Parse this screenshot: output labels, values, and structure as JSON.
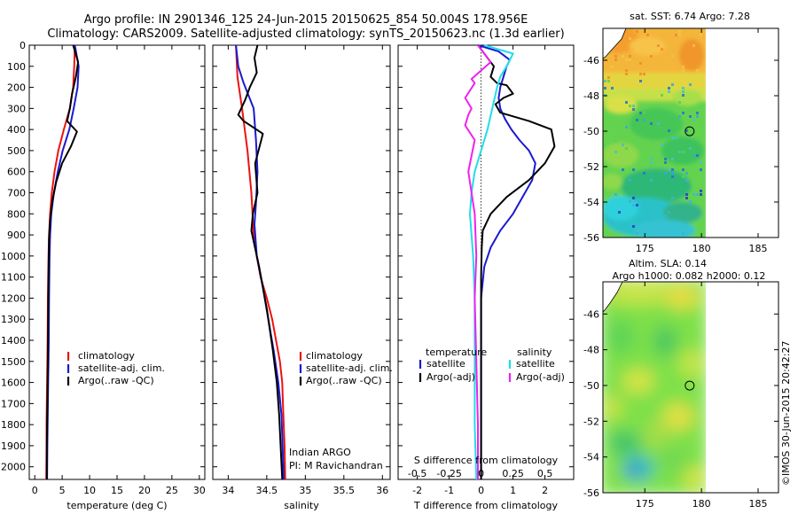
{
  "figure": {
    "title_line1": "Argo profile: IN 2901346_125 24-Jun-2015 20150625_854 50.004S 178.956E",
    "title_line2": "Climatology: CARS2009. Satellite-adjusted climatology: synTS_20150623.nc (1.3d earlier)",
    "copyright": "©IMOS 30-Jun-2015 20:42:27"
  },
  "colors": {
    "climatology": "#ee1111",
    "satellite": "#1a1ad0",
    "argo": "#000000",
    "satellite_diff": "#22dde8",
    "argo_diff": "#ee22ee"
  },
  "chart_data": [
    {
      "type": "line",
      "name": "temperature-panel",
      "xlabel": "temperature (deg C)",
      "ylabel": "",
      "xlim": [
        -1,
        31
      ],
      "ylim": [
        2060,
        0
      ],
      "xticks": [
        "0",
        "5",
        "10",
        "15",
        "20",
        "25",
        "30"
      ],
      "yticks": [
        "0",
        "100",
        "200",
        "300",
        "400",
        "500",
        "600",
        "700",
        "800",
        "900",
        "1000",
        "1100",
        "1200",
        "1300",
        "1400",
        "1500",
        "1600",
        "1700",
        "1800",
        "1900",
        "2000"
      ],
      "legend": [
        "climatology",
        "satellite-adj. clim.",
        "Argo(..raw -QC)"
      ],
      "series": [
        {
          "name": "climatology",
          "x": [
            7.3,
            7.2,
            7.0,
            6.4,
            5.3,
            4.3,
            3.6,
            3.1,
            2.8,
            2.6,
            2.5,
            2.4,
            2.35,
            2.3,
            2.25,
            2.2,
            2.15,
            2.15,
            2.1
          ],
          "y": [
            0,
            100,
            200,
            300,
            400,
            500,
            600,
            700,
            800,
            900,
            1000,
            1200,
            1400,
            1500,
            1600,
            1700,
            1800,
            1900,
            2060
          ]
        },
        {
          "name": "satellite-adj. clim.",
          "x": [
            7.3,
            8.0,
            7.8,
            7.1,
            6.3,
            5.1,
            4.2,
            3.5,
            3.0,
            2.8,
            2.7,
            2.6,
            2.55,
            2.5,
            2.45,
            2.4,
            2.35,
            2.3,
            2.25
          ],
          "y": [
            0,
            100,
            200,
            300,
            400,
            500,
            600,
            700,
            800,
            900,
            1000,
            1200,
            1400,
            1500,
            1600,
            1700,
            1800,
            1900,
            2060
          ]
        },
        {
          "name": "Argo(..raw -QC)",
          "x": [
            7.0,
            7.9,
            7.5,
            6.8,
            6.4,
            5.9,
            7.7,
            6.6,
            5.0,
            3.9,
            3.2,
            2.8,
            2.6,
            2.5,
            2.45,
            2.4,
            2.35,
            2.3,
            2.25,
            2.2,
            2.2
          ],
          "y": [
            0,
            80,
            150,
            230,
            300,
            360,
            410,
            480,
            560,
            650,
            740,
            830,
            920,
            1100,
            1300,
            1500,
            1600,
            1700,
            1800,
            1900,
            2060
          ]
        }
      ]
    },
    {
      "type": "line",
      "name": "salinity-panel",
      "xlabel": "salinity",
      "xlim": [
        33.8,
        36.1
      ],
      "ylim": [
        2060,
        0
      ],
      "xticks": [
        "34",
        "34.5",
        "35",
        "35.5",
        "36"
      ],
      "legend": [
        "climatology",
        "satellite-adj. clim.",
        "Argo(..raw -QC)"
      ],
      "annotation": [
        "Indian ARGO",
        "PI: M Ravichandran"
      ],
      "series": [
        {
          "name": "climatology",
          "x": [
            34.1,
            34.12,
            34.18,
            34.25,
            34.3,
            34.33,
            34.37,
            34.42,
            34.5,
            34.57,
            34.62,
            34.67,
            34.7,
            34.71,
            34.72,
            34.73,
            34.74
          ],
          "y": [
            0,
            150,
            300,
            500,
            700,
            900,
            1000,
            1100,
            1200,
            1300,
            1400,
            1500,
            1600,
            1700,
            1800,
            1900,
            2060
          ]
        },
        {
          "name": "satellite-adj. clim.",
          "x": [
            34.1,
            34.13,
            34.2,
            34.33,
            34.36,
            34.38,
            34.36,
            34.34,
            34.37,
            34.45,
            34.52,
            34.59,
            34.65,
            34.69,
            34.7,
            34.71,
            34.72
          ],
          "y": [
            0,
            100,
            180,
            300,
            450,
            600,
            750,
            850,
            1000,
            1150,
            1300,
            1450,
            1600,
            1750,
            1850,
            1950,
            2060
          ]
        },
        {
          "name": "Argo(..raw -QC)",
          "x": [
            34.38,
            34.34,
            34.37,
            34.28,
            34.22,
            34.13,
            34.2,
            34.45,
            34.35,
            34.38,
            34.32,
            34.3,
            34.4,
            34.5,
            34.58,
            34.63,
            34.66,
            34.68,
            34.7
          ],
          "y": [
            0,
            60,
            130,
            200,
            260,
            330,
            360,
            420,
            560,
            700,
            800,
            880,
            1050,
            1250,
            1450,
            1600,
            1750,
            1900,
            2060
          ]
        }
      ]
    },
    {
      "type": "line",
      "name": "difference-panel",
      "xlabel": "T difference from climatology",
      "x2label": "S difference from climatology",
      "xlim": [
        -2.6,
        2.9
      ],
      "ylim": [
        2060,
        0
      ],
      "xticks": [
        "-2",
        "-1",
        "0",
        "1",
        "2"
      ],
      "x2ticks": [
        "-0.5",
        "-0.25",
        "0",
        "0.25",
        "0.5"
      ],
      "x2tick_values": [
        -2,
        -1,
        0,
        1,
        2
      ],
      "legend_headers": [
        "temperature",
        "salinity"
      ],
      "legend": [
        "satellite",
        "Argo(-adj)",
        "satellite",
        "Argo(-adj)"
      ],
      "series": [
        {
          "name": "satellite",
          "x": [
            -0.1,
            0.55,
            0.9,
            0.8,
            0.7,
            0.6,
            0.55,
            0.6,
            0.75,
            0.95,
            1.2,
            1.5,
            1.7,
            1.6,
            1.3,
            1.0,
            0.6,
            0.3,
            0.1,
            0.0,
            0.0,
            0.0,
            0.0
          ],
          "y": [
            0,
            30,
            70,
            100,
            150,
            200,
            250,
            300,
            350,
            400,
            450,
            500,
            560,
            640,
            720,
            800,
            880,
            960,
            1050,
            1200,
            1500,
            1800,
            2060
          ],
          "kind": "T"
        },
        {
          "name": "Argo(-adj)",
          "x": [
            -0.1,
            0.2,
            0.4,
            0.3,
            0.5,
            0.8,
            1.0,
            0.7,
            0.45,
            0.6,
            1.5,
            2.2,
            2.3,
            2.0,
            1.5,
            0.8,
            0.3,
            0.05,
            0.02,
            0.0,
            0.0,
            0.0
          ],
          "y": [
            0,
            60,
            100,
            150,
            180,
            190,
            230,
            250,
            280,
            320,
            360,
            400,
            480,
            560,
            640,
            720,
            800,
            880,
            960,
            1100,
            1500,
            2060
          ],
          "kind": "T"
        },
        {
          "name": "satellite",
          "x": [
            0.1,
            1.0,
            0.8,
            0.6,
            0.5,
            0.35,
            0.2,
            0.0,
            -0.2,
            -0.3,
            -0.35,
            -0.3,
            -0.25,
            -0.2,
            -0.2,
            -0.2,
            -0.15
          ],
          "y": [
            0,
            40,
            100,
            150,
            200,
            300,
            400,
            500,
            600,
            700,
            800,
            900,
            1000,
            1200,
            1500,
            1800,
            2060
          ],
          "kind": "S"
        },
        {
          "name": "Argo(-adj)",
          "x": [
            -0.1,
            0.3,
            -0.3,
            -0.2,
            -0.5,
            -0.3,
            -0.4,
            -0.5,
            -0.2,
            -0.4,
            -0.2,
            -0.15,
            -0.2,
            -0.15,
            -0.1,
            -0.1
          ],
          "y": [
            0,
            80,
            160,
            180,
            250,
            300,
            330,
            380,
            450,
            600,
            800,
            1000,
            1200,
            1500,
            1800,
            2060
          ],
          "kind": "S"
        }
      ]
    },
    {
      "type": "heatmap",
      "name": "sst-map",
      "title": "sat. SST: 6.74  Argo: 7.28",
      "xlim": [
        171.3,
        186.8
      ],
      "ylim": [
        -56,
        -44.2
      ],
      "xticks": [
        "175",
        "180",
        "185"
      ],
      "yticks": [
        "-46",
        "-48",
        "-50",
        "-52",
        "-54",
        "-56"
      ],
      "argo_position": {
        "lon": 178.956,
        "lat": -50.004
      }
    },
    {
      "type": "heatmap",
      "name": "sla-map",
      "title": "Altim. SLA: 0.14",
      "subtitle": "Argo h1000: 0.082  h2000: 0.12",
      "xlim": [
        171.3,
        186.8
      ],
      "ylim": [
        -56,
        -44.2
      ],
      "xticks": [
        "175",
        "180",
        "185"
      ],
      "yticks": [
        "-46",
        "-48",
        "-50",
        "-52",
        "-54",
        "-56"
      ],
      "argo_position": {
        "lon": 178.956,
        "lat": -50.004
      }
    }
  ]
}
